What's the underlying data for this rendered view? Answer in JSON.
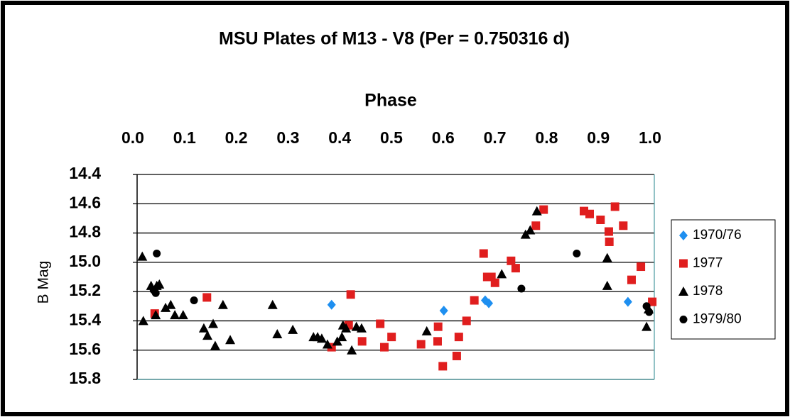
{
  "chart_data": {
    "type": "scatter",
    "title": "MSU Plates of M13 - V8  (Per = 0.750316 d)",
    "x_label": "Phase",
    "y_label": "B Mag",
    "xlim": [
      0,
      1
    ],
    "xticks": [
      {
        "value": 0,
        "label": "0.0"
      },
      0.1,
      0.2,
      0.3,
      0.4,
      0.5,
      0.6,
      0.7,
      0.8,
      0.9,
      {
        "value": 1,
        "label": "1.0"
      }
    ],
    "x_axis_position": "top",
    "ylim": [
      15.8,
      14.4
    ],
    "yticks": [
      15.8,
      15.6,
      15.4,
      15.2,
      {
        "value": 15,
        "label": "15.0"
      },
      14.8,
      14.6,
      14.4
    ],
    "grid": true,
    "legend": "right",
    "series": [
      {
        "name": "1970/76",
        "color": "#1e8ff0",
        "marker": "diamond",
        "x": [
          0.376,
          0.593,
          0.673,
          0.68,
          0.949
        ],
        "values": [
          15.29,
          15.33,
          15.26,
          15.28,
          15.27
        ]
      },
      {
        "name": "1977",
        "color": "#e01e1e",
        "marker": "square",
        "x": [
          0.034,
          0.135,
          0.376,
          0.413,
          0.409,
          0.435,
          0.47,
          0.478,
          0.492,
          0.549,
          0.582,
          0.581,
          0.591,
          0.618,
          0.622,
          0.637,
          0.652,
          0.67,
          0.677,
          0.685,
          0.692,
          0.723,
          0.732,
          0.771,
          0.786,
          0.864,
          0.875,
          0.896,
          0.912,
          0.924,
          0.913,
          0.94,
          0.956,
          0.974,
          0.996
        ],
        "values": [
          15.35,
          15.24,
          15.58,
          15.22,
          15.43,
          15.54,
          15.42,
          15.58,
          15.51,
          15.56,
          15.44,
          15.54,
          15.71,
          15.64,
          15.51,
          15.4,
          15.26,
          14.94,
          15.1,
          15.1,
          15.14,
          14.99,
          15.04,
          14.75,
          14.64,
          14.65,
          14.67,
          14.71,
          14.79,
          14.62,
          14.86,
          14.75,
          15.12,
          15.03,
          15.27
        ]
      },
      {
        "name": "1978",
        "color": "#000000",
        "marker": "triangle",
        "x": [
          0.01,
          0.012,
          0.027,
          0.038,
          0.043,
          0.036,
          0.055,
          0.065,
          0.073,
          0.089,
          0.129,
          0.136,
          0.147,
          0.151,
          0.166,
          0.18,
          0.262,
          0.271,
          0.301,
          0.341,
          0.349,
          0.357,
          0.368,
          0.387,
          0.396,
          0.398,
          0.404,
          0.415,
          0.424,
          0.434,
          0.56,
          0.705,
          0.751,
          0.76,
          0.773,
          0.909,
          0.909,
          0.985,
          0.989
        ],
        "values": [
          14.96,
          15.4,
          15.16,
          15.16,
          15.15,
          15.36,
          15.31,
          15.29,
          15.36,
          15.36,
          15.45,
          15.5,
          15.42,
          15.57,
          15.29,
          15.53,
          15.29,
          15.49,
          15.46,
          15.51,
          15.51,
          15.52,
          15.56,
          15.54,
          15.51,
          15.43,
          15.45,
          15.6,
          15.44,
          15.45,
          15.47,
          15.08,
          14.81,
          14.78,
          14.65,
          14.97,
          15.16,
          15.44,
          15.32
        ]
      },
      {
        "name": "1979/80",
        "color": "#000000",
        "marker": "circle",
        "x": [
          0.038,
          0.032,
          0.036,
          0.11,
          0.743,
          0.85,
          0.985,
          0.99
        ],
        "values": [
          14.94,
          15.19,
          15.21,
          15.26,
          15.18,
          14.94,
          15.3,
          15.34
        ]
      }
    ]
  }
}
